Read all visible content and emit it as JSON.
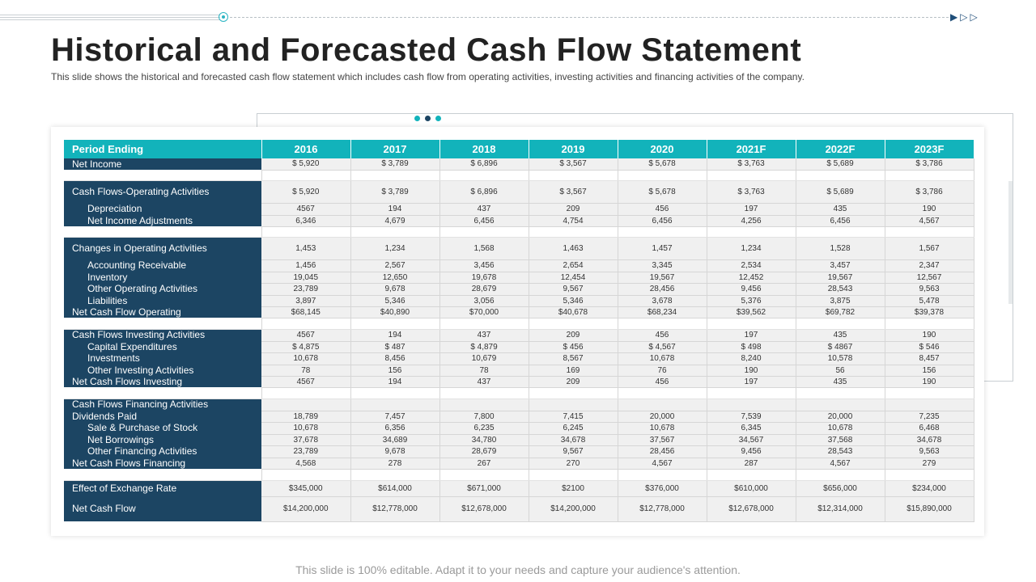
{
  "title": "Historical and Forecasted Cash Flow Statement",
  "subtitle": "This slide shows the historical and forecasted cash flow statement which includes cash flow from operating activities, investing activities and financing activities of the company.",
  "footer": "This slide is 100% editable. Adapt it to your needs and capture your audience's attention.",
  "accent": "#12b3bb",
  "label_bg": "#1c4563",
  "nav_icon": "play-arrow-icon",
  "table": {
    "header_label": "Period Ending",
    "years": [
      "2016",
      "2017",
      "2018",
      "2019",
      "2020",
      "2021F",
      "2022F",
      "2023F"
    ],
    "rows": [
      {
        "label": "Net Income",
        "values": [
          "$ 5,920",
          "$ 3,789",
          "$ 6,896",
          "$ 3,567",
          "$ 5,678",
          "$ 3,763",
          "$ 5,689",
          "$ 3,786"
        ]
      },
      {
        "label": "Cash Flows-Operating Activities",
        "values": [
          "$ 5,920",
          "$ 3,789",
          "$ 6,896",
          "$ 3,567",
          "$ 5,678",
          "$ 3,763",
          "$ 5,689",
          "$ 3,786"
        ]
      },
      {
        "label": "Depreciation",
        "values": [
          "4567",
          "194",
          "437",
          "209",
          "456",
          "197",
          "435",
          "190"
        ]
      },
      {
        "label": "Net Income Adjustments",
        "values": [
          "6,346",
          "4,679",
          "6,456",
          "4,754",
          "6,456",
          "4,256",
          "6,456",
          "4,567"
        ]
      },
      {
        "label": "Changes in Operating Activities",
        "values": [
          "1,453",
          "1,234",
          "1,568",
          "1,463",
          "1,457",
          "1,234",
          "1,528",
          "1,567"
        ]
      },
      {
        "label": "Accounting Receivable",
        "values": [
          "1,456",
          "2,567",
          "3,456",
          "2,654",
          "3,345",
          "2,534",
          "3,457",
          "2,347"
        ]
      },
      {
        "label": "Inventory",
        "values": [
          "19,045",
          "12,650",
          "19,678",
          "12,454",
          "19,567",
          "12,452",
          "19,567",
          "12,567"
        ]
      },
      {
        "label": "Other Operating Activities",
        "values": [
          "23,789",
          "9,678",
          "28,679",
          "9,567",
          "28,456",
          "9,456",
          "28,543",
          "9,563"
        ]
      },
      {
        "label": "Liabilities",
        "values": [
          "3,897",
          "5,346",
          "3,056",
          "5,346",
          "3,678",
          "5,376",
          "3,875",
          "5,478"
        ]
      },
      {
        "label": "Net Cash Flow Operating",
        "values": [
          "$68,145",
          "$40,890",
          "$70,000",
          "$40,678",
          "$68,234",
          "$39,562",
          "$69,782",
          "$39,378"
        ]
      },
      {
        "label": "Cash Flows Investing Activities",
        "values": [
          "4567",
          "194",
          "437",
          "209",
          "456",
          "197",
          "435",
          "190"
        ]
      },
      {
        "label": "Capital Expenditures",
        "values": [
          "$ 4,875",
          "$ 487",
          "$ 4,879",
          "$ 456",
          "$ 4,567",
          "$ 498",
          "$ 4867",
          "$ 546"
        ]
      },
      {
        "label": "Investments",
        "values": [
          "10,678",
          "8,456",
          "10,679",
          "8,567",
          "10,678",
          "8,240",
          "10,578",
          "8,457"
        ]
      },
      {
        "label": "Other Investing Activities",
        "values": [
          "78",
          "156",
          "78",
          "169",
          "76",
          "190",
          "56",
          "156"
        ]
      },
      {
        "label": "Net Cash Flows Investing",
        "values": [
          "4567",
          "194",
          "437",
          "209",
          "456",
          "197",
          "435",
          "190"
        ]
      },
      {
        "label": "Cash Flows Financing Activities",
        "values": [
          "",
          "",
          "",
          "",
          "",
          "",
          "",
          ""
        ]
      },
      {
        "label": "Dividends Paid",
        "values": [
          "18,789",
          "7,457",
          "7,800",
          "7,415",
          "20,000",
          "7,539",
          "20,000",
          "7,235"
        ]
      },
      {
        "label": "Sale & Purchase of Stock",
        "values": [
          "10,678",
          "6,356",
          "6,235",
          "6,245",
          "10,678",
          "6,345",
          "10,678",
          "6,468"
        ]
      },
      {
        "label": "Net Borrowings",
        "values": [
          "37,678",
          "34,689",
          "34,780",
          "34,678",
          "37,567",
          "34,567",
          "37,568",
          "34,678"
        ]
      },
      {
        "label": "Other Financing Activities",
        "values": [
          "23,789",
          "9,678",
          "28,679",
          "9,567",
          "28,456",
          "9,456",
          "28,543",
          "9,563"
        ]
      },
      {
        "label": "Net Cash Flows Financing",
        "values": [
          "4,568",
          "278",
          "267",
          "270",
          "4,567",
          "287",
          "4,567",
          "279"
        ]
      },
      {
        "label": "Effect of Exchange Rate",
        "values": [
          "$345,000",
          "$614,000",
          "$671,000",
          "$2100",
          "$376,000",
          "$610,000",
          "$656,000",
          "$234,000"
        ]
      },
      {
        "label": "Net Cash Flow",
        "values": [
          "$14,200,000",
          "$12,778,000",
          "$12,678,000",
          "$14,200,000",
          "$12,778,000",
          "$12,678,000",
          "$12,314,000",
          "$15,890,000"
        ]
      }
    ]
  }
}
